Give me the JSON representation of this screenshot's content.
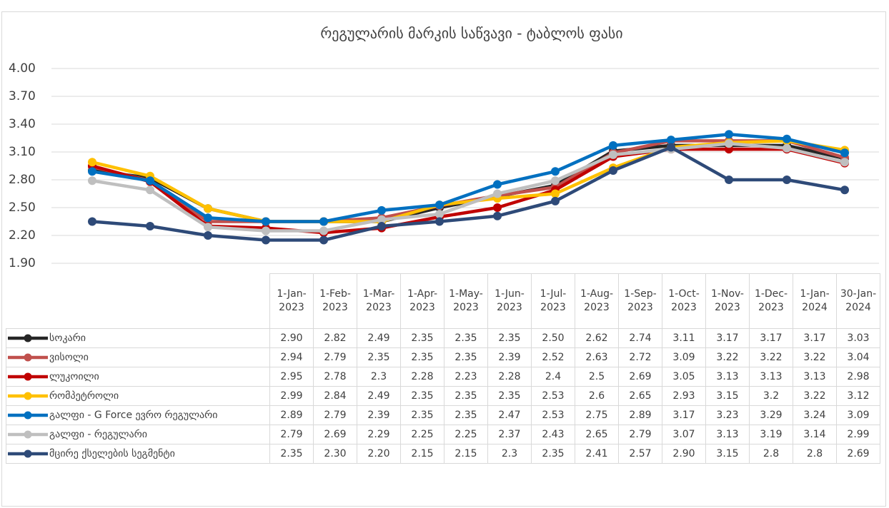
{
  "chart_data": {
    "type": "line",
    "title": "რეგულარის მარკის საწვავი - ტაბლოს ფასი",
    "categories": [
      "1-Jan-2023",
      "1-Feb-2023",
      "1-Mar-2023",
      "1-Apr-2023",
      "1-May-2023",
      "1-Jun-2023",
      "1-Jul-2023",
      "1-Aug-2023",
      "1-Sep-2023",
      "1-Oct-2023",
      "1-Nov-2023",
      "1-Dec-2023",
      "1-Jan-2024",
      "30-Jan-2024"
    ],
    "ylim": [
      1.9,
      4.0
    ],
    "yticks": [
      {
        "value": 1.9,
        "label": "1.90"
      },
      {
        "value": 2.2,
        "label": "2.20"
      },
      {
        "value": 2.5,
        "label": "2.50"
      },
      {
        "value": 2.8,
        "label": "2.80"
      },
      {
        "value": 3.1,
        "label": "3.10"
      },
      {
        "value": 3.4,
        "label": "3.40"
      },
      {
        "value": 3.7,
        "label": "3.70"
      },
      {
        "value": 4.0,
        "label": "4.00"
      }
    ],
    "grid": true,
    "series": [
      {
        "name": "სოკარი",
        "color": "#262626",
        "values": [
          2.9,
          2.82,
          2.49,
          2.35,
          2.35,
          2.35,
          2.5,
          2.62,
          2.74,
          3.11,
          3.17,
          3.17,
          3.17,
          3.03
        ],
        "value_labels": [
          "2.90",
          "2.82",
          "2.49",
          "2.35",
          "2.35",
          "2.35",
          "2.50",
          "2.62",
          "2.74",
          "3.11",
          "3.17",
          "3.17",
          "3.17",
          "3.03"
        ]
      },
      {
        "name": "ვისოლი",
        "color": "#c0504d",
        "values": [
          2.94,
          2.79,
          2.35,
          2.35,
          2.35,
          2.39,
          2.52,
          2.63,
          2.72,
          3.09,
          3.22,
          3.22,
          3.22,
          3.04
        ],
        "value_labels": [
          "2.94",
          "2.79",
          "2.35",
          "2.35",
          "2.35",
          "2.39",
          "2.52",
          "2.63",
          "2.72",
          "3.09",
          "3.22",
          "3.22",
          "3.22",
          "3.04"
        ]
      },
      {
        "name": "ლუკოილი",
        "color": "#c00000",
        "values": [
          2.95,
          2.78,
          2.3,
          2.28,
          2.23,
          2.28,
          2.4,
          2.5,
          2.69,
          3.05,
          3.13,
          3.13,
          3.13,
          2.98
        ],
        "value_labels": [
          "2.95",
          "2.78",
          "2.3",
          "2.28",
          "2.23",
          "2.28",
          "2.4",
          "2.5",
          "2.69",
          "3.05",
          "3.13",
          "3.13",
          "3.13",
          "2.98"
        ]
      },
      {
        "name": "რომპეტროლი",
        "color": "#ffc000",
        "values": [
          2.99,
          2.84,
          2.49,
          2.35,
          2.35,
          2.35,
          2.53,
          2.6,
          2.65,
          2.93,
          3.15,
          3.2,
          3.22,
          3.12
        ],
        "value_labels": [
          "2.99",
          "2.84",
          "2.49",
          "2.35",
          "2.35",
          "2.35",
          "2.53",
          "2.6",
          "2.65",
          "2.93",
          "3.15",
          "3.2",
          "3.22",
          "3.12"
        ]
      },
      {
        "name": "გალფი - G Force ევრო რეგულარი",
        "color": "#0070c0",
        "values": [
          2.89,
          2.79,
          2.39,
          2.35,
          2.35,
          2.47,
          2.53,
          2.75,
          2.89,
          3.17,
          3.23,
          3.29,
          3.24,
          3.09
        ],
        "value_labels": [
          "2.89",
          "2.79",
          "2.39",
          "2.35",
          "2.35",
          "2.47",
          "2.53",
          "2.75",
          "2.89",
          "3.17",
          "3.23",
          "3.29",
          "3.24",
          "3.09"
        ]
      },
      {
        "name": "გალფი - რეგულარი",
        "color": "#bfbfbf",
        "values": [
          2.79,
          2.69,
          2.29,
          2.25,
          2.25,
          2.37,
          2.43,
          2.65,
          2.79,
          3.07,
          3.13,
          3.19,
          3.14,
          2.99
        ],
        "value_labels": [
          "2.79",
          "2.69",
          "2.29",
          "2.25",
          "2.25",
          "2.37",
          "2.43",
          "2.65",
          "2.79",
          "3.07",
          "3.13",
          "3.19",
          "3.14",
          "2.99"
        ]
      },
      {
        "name": "მცირე ქსელების სეგმენტი",
        "color": "#2e4a78",
        "values": [
          2.35,
          2.3,
          2.2,
          2.15,
          2.15,
          2.3,
          2.35,
          2.41,
          2.57,
          2.9,
          3.15,
          2.8,
          2.8,
          2.69
        ],
        "value_labels": [
          "2.35",
          "2.30",
          "2.20",
          "2.15",
          "2.15",
          "2.3",
          "2.35",
          "2.41",
          "2.57",
          "2.90",
          "3.15",
          "2.8",
          "2.8",
          "2.69"
        ]
      }
    ]
  }
}
